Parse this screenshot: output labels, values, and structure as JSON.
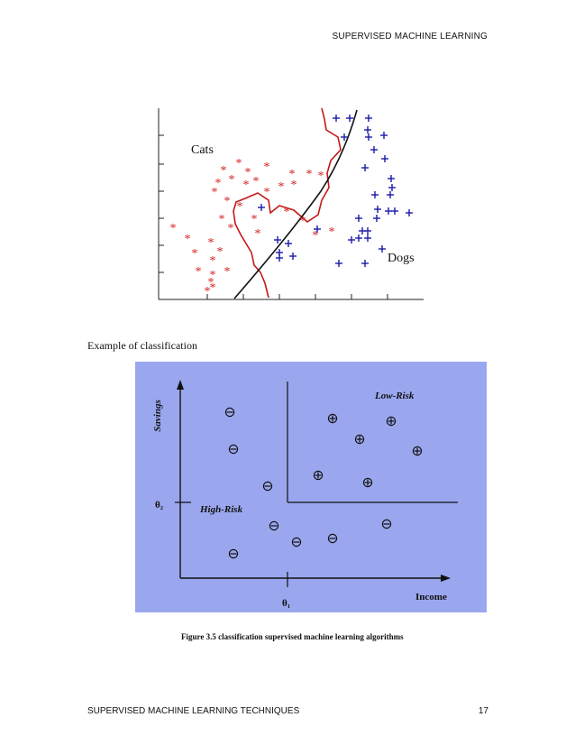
{
  "page": {
    "header": "SUPERVISED MACHINE LEARNING",
    "footer_left": "SUPERVISED MACHINE LEARNING TECHNIQUES",
    "page_number": "17"
  },
  "figure1": {
    "label_cats": "Cats",
    "label_dogs": "Dogs",
    "cat_color": "#d42020",
    "dog_color": "#1a1aa8",
    "caption": "Example of classification"
  },
  "figure2": {
    "background": "#9aa7ee",
    "ylabel": "Savings",
    "xlabel": "Income",
    "theta2": "θ₂",
    "theta1": "θ₁",
    "region_high": "High-Risk",
    "region_low": "Low-Risk",
    "caption": "Figure 3.5 classification supervised machine learning algorithms"
  }
}
